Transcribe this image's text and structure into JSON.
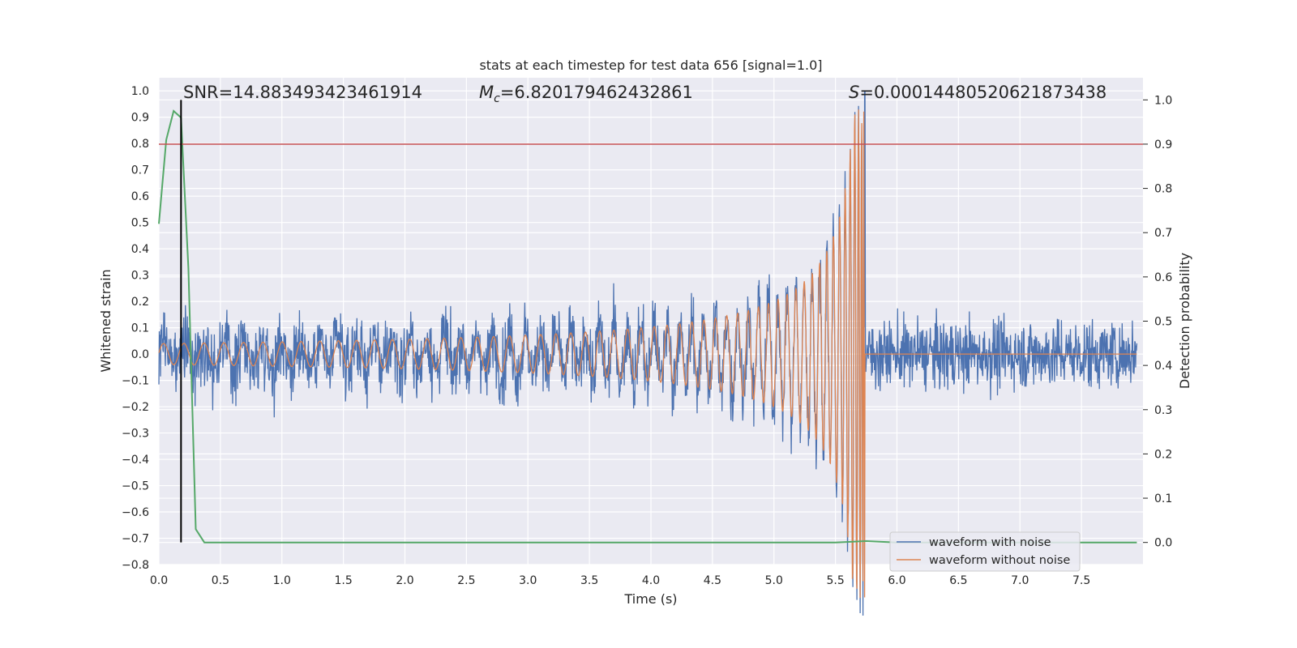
{
  "chart_data": {
    "type": "line",
    "title": "stats at each timestep for test data 656 [signal=1.0]",
    "xlabel": "Time (s)",
    "ylabel": "Whitened strain",
    "y2label": "Detection probability",
    "xlim": [
      0,
      8
    ],
    "ylim": [
      -0.8,
      1.05
    ],
    "y2lim": [
      -0.05,
      1.05
    ],
    "xticks": [
      "0.0",
      "0.5",
      "1.0",
      "1.5",
      "2.0",
      "2.5",
      "3.0",
      "3.5",
      "4.0",
      "4.5",
      "5.0",
      "5.5",
      "6.0",
      "6.5",
      "7.0",
      "7.5"
    ],
    "yticks": [
      "−0.8",
      "−0.7",
      "−0.6",
      "−0.5",
      "−0.4",
      "−0.3",
      "−0.2",
      "−0.1",
      "0.0",
      "0.1",
      "0.2",
      "0.3",
      "0.4",
      "0.5",
      "0.6",
      "0.7",
      "0.8",
      "0.9",
      "1.0"
    ],
    "y2ticks": [
      "0.0",
      "0.1",
      "0.2",
      "0.3",
      "0.4",
      "0.5",
      "0.6",
      "0.7",
      "0.8",
      "0.9",
      "1.0"
    ],
    "grid": true,
    "legend_position": "lower-right",
    "annotations": {
      "snr": "SNR=14.883493423461914",
      "mc_symbol": "M",
      "mc_sub": "c",
      "mc_value": "=6.820179462432861",
      "s_symbol": "S",
      "s_value": "=0.00014480520621873438"
    },
    "series": [
      {
        "name": "waveform with noise",
        "color": "#4c72b0",
        "axis": "left",
        "noise_amplitude": 0.2,
        "merger_time": 5.74,
        "peak": 1.0
      },
      {
        "name": "waveform without noise",
        "color": "#dd8452",
        "axis": "left",
        "start_amplitude": 0.04,
        "merger_time": 5.74,
        "peak": 0.93
      },
      {
        "name": "detection probability",
        "color": "#55a868",
        "axis": "right",
        "x": [
          0.0,
          0.06,
          0.12,
          0.18,
          0.24,
          0.3,
          0.37,
          0.5,
          1.0,
          2.0,
          3.0,
          4.0,
          5.0,
          5.5,
          5.75,
          6.0,
          7.0,
          7.95
        ],
        "y": [
          0.72,
          0.91,
          0.975,
          0.96,
          0.62,
          0.03,
          0.0,
          0.0,
          0.0,
          0.0,
          0.0,
          0.0,
          0.0,
          0.0,
          0.003,
          0.0,
          0.0,
          0.0
        ]
      }
    ],
    "reference_lines": {
      "threshold_probability": 0.9,
      "threshold_color": "#c44e52",
      "marker_time": 0.18,
      "marker_color": "#000000"
    }
  }
}
